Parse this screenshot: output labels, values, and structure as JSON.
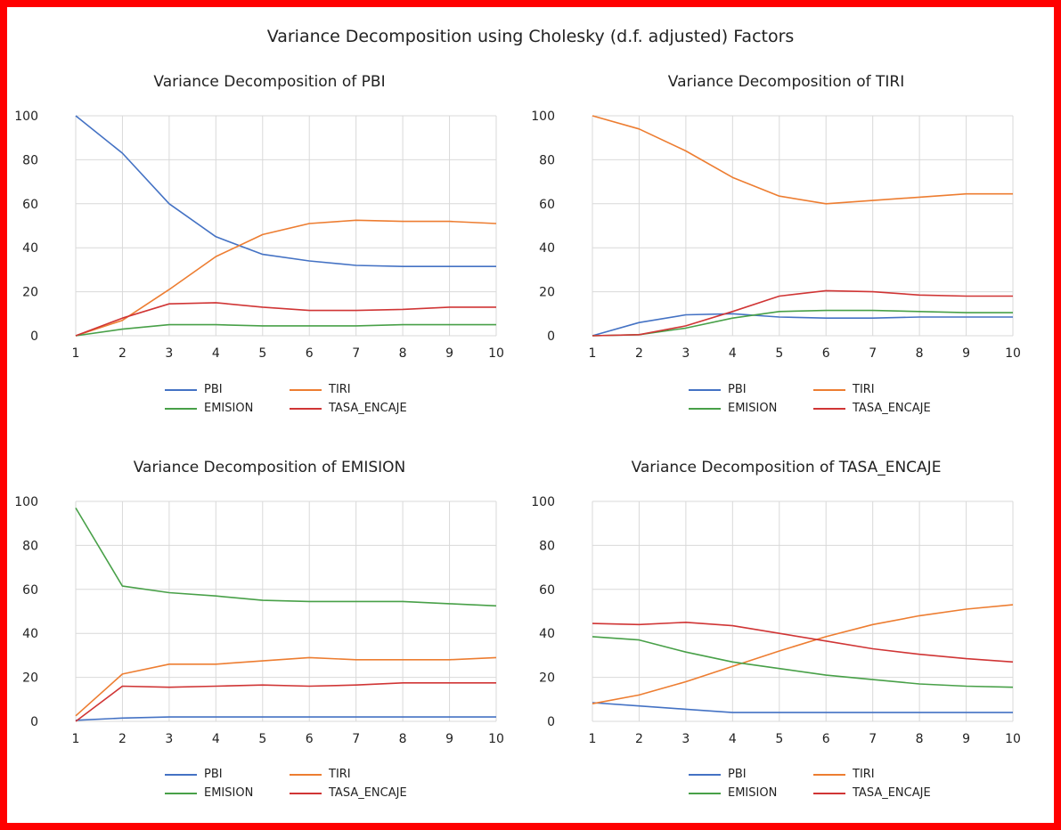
{
  "title": "Variance Decomposition using Cholesky (d.f. adjusted) Factors",
  "colors": {
    "PBI": "#4472c4",
    "TIRI": "#ed7d31",
    "EMISION": "#48a048",
    "TASA_ENCAJE": "#d03535",
    "grid": "#d9d9d9",
    "frame": "#ff0000"
  },
  "chart_data": [
    {
      "type": "line",
      "title": "Variance Decomposition of PBI",
      "x": [
        1,
        2,
        3,
        4,
        5,
        6,
        7,
        8,
        9,
        10
      ],
      "ylim": [
        0,
        100
      ],
      "yticks": [
        "0",
        "20",
        "40",
        "60",
        "80",
        "100"
      ],
      "xticks": [
        "1",
        "2",
        "3",
        "4",
        "5",
        "6",
        "7",
        "8",
        "9",
        "10"
      ],
      "grid": true,
      "legend": "bottom",
      "series": [
        {
          "name": "PBI",
          "values": [
            100,
            83,
            60,
            45,
            37,
            34,
            32,
            31.5,
            31.5,
            31.5
          ]
        },
        {
          "name": "TIRI",
          "values": [
            0,
            7,
            21,
            36,
            46,
            51,
            52.5,
            52,
            52,
            51
          ]
        },
        {
          "name": "EMISION",
          "values": [
            0,
            3,
            5,
            5,
            4.5,
            4.5,
            4.5,
            5,
            5,
            5
          ]
        },
        {
          "name": "TASA_ENCAJE",
          "values": [
            0,
            8,
            14.5,
            15,
            13,
            11.5,
            11.5,
            12,
            13,
            13
          ]
        }
      ]
    },
    {
      "type": "line",
      "title": "Variance Decomposition of TIRI",
      "x": [
        1,
        2,
        3,
        4,
        5,
        6,
        7,
        8,
        9,
        10
      ],
      "ylim": [
        0,
        100
      ],
      "yticks": [
        "0",
        "20",
        "40",
        "60",
        "80",
        "100"
      ],
      "xticks": [
        "1",
        "2",
        "3",
        "4",
        "5",
        "6",
        "7",
        "8",
        "9",
        "10"
      ],
      "grid": true,
      "legend": "bottom",
      "series": [
        {
          "name": "PBI",
          "values": [
            0,
            6,
            9.5,
            10,
            8.5,
            8,
            8,
            8.5,
            8.5,
            8.5
          ]
        },
        {
          "name": "TIRI",
          "values": [
            100,
            94,
            84,
            72,
            63.5,
            60,
            61.5,
            63,
            64.5,
            64.5
          ]
        },
        {
          "name": "EMISION",
          "values": [
            0,
            0.5,
            3.5,
            8,
            11,
            11.5,
            11.5,
            11,
            10.5,
            10.5
          ]
        },
        {
          "name": "TASA_ENCAJE",
          "values": [
            0,
            0.5,
            4.5,
            11,
            18,
            20.5,
            20,
            18.5,
            18,
            18
          ]
        }
      ]
    },
    {
      "type": "line",
      "title": "Variance Decomposition of EMISION",
      "x": [
        1,
        2,
        3,
        4,
        5,
        6,
        7,
        8,
        9,
        10
      ],
      "ylim": [
        0,
        100
      ],
      "yticks": [
        "0",
        "20",
        "40",
        "60",
        "80",
        "100"
      ],
      "xticks": [
        "1",
        "2",
        "3",
        "4",
        "5",
        "6",
        "7",
        "8",
        "9",
        "10"
      ],
      "grid": true,
      "legend": "bottom",
      "series": [
        {
          "name": "PBI",
          "values": [
            0.5,
            1.5,
            2,
            2,
            2,
            2,
            2,
            2,
            2,
            2
          ]
        },
        {
          "name": "TIRI",
          "values": [
            2.5,
            21.5,
            26,
            26,
            27.5,
            29,
            28,
            28,
            28,
            29
          ]
        },
        {
          "name": "EMISION",
          "values": [
            97,
            61.5,
            58.5,
            57,
            55,
            54.5,
            54.5,
            54.5,
            53.5,
            52.5
          ]
        },
        {
          "name": "TASA_ENCAJE",
          "values": [
            0,
            16,
            15.5,
            16,
            16.5,
            16,
            16.5,
            17.5,
            17.5,
            17.5
          ]
        }
      ]
    },
    {
      "type": "line",
      "title": "Variance Decomposition of TASA_ENCAJE",
      "x": [
        1,
        2,
        3,
        4,
        5,
        6,
        7,
        8,
        9,
        10
      ],
      "ylim": [
        0,
        100
      ],
      "yticks": [
        "0",
        "20",
        "40",
        "60",
        "80",
        "100"
      ],
      "xticks": [
        "1",
        "2",
        "3",
        "4",
        "5",
        "6",
        "7",
        "8",
        "9",
        "10"
      ],
      "grid": true,
      "legend": "bottom",
      "series": [
        {
          "name": "PBI",
          "values": [
            8.5,
            7,
            5.5,
            4,
            4,
            4,
            4,
            4,
            4,
            4
          ]
        },
        {
          "name": "TIRI",
          "values": [
            8,
            12,
            18,
            25,
            32,
            38.5,
            44,
            48,
            51,
            53
          ]
        },
        {
          "name": "EMISION",
          "values": [
            38.5,
            37,
            31.5,
            27,
            24,
            21,
            19,
            17,
            16,
            15.5
          ]
        },
        {
          "name": "TASA_ENCAJE",
          "values": [
            44.5,
            44,
            45,
            43.5,
            40,
            36.5,
            33,
            30.5,
            28.5,
            27
          ]
        }
      ]
    }
  ]
}
